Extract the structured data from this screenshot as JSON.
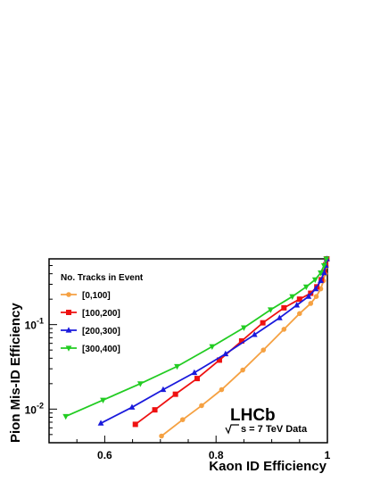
{
  "chart_data": {
    "type": "line",
    "xlabel": "Kaon ID Efficiency",
    "ylabel": "Pion Mis-ID Efficiency",
    "xlim": [
      0.5,
      1.0
    ],
    "ylim": [
      0.004,
      0.6
    ],
    "yscale": "log",
    "xticks": [
      0.6,
      0.8,
      1
    ],
    "yticks": [
      0.01,
      0.1
    ],
    "ytick_labels": [
      {
        "base": "10",
        "exp": "-2"
      },
      {
        "base": "10",
        "exp": "-1"
      }
    ],
    "legend_title": "No. Tracks in Event",
    "legend_position": "top-left",
    "annotation": {
      "main": "LHCb",
      "sub": "s = 7 TeV Data"
    },
    "series": [
      {
        "name": "[0,100]",
        "color": "#f5a142",
        "marker": "circle",
        "points": [
          [
            0.702,
            0.0048
          ],
          [
            0.74,
            0.0075
          ],
          [
            0.774,
            0.011
          ],
          [
            0.81,
            0.017
          ],
          [
            0.848,
            0.029
          ],
          [
            0.885,
            0.05
          ],
          [
            0.922,
            0.088
          ],
          [
            0.95,
            0.135
          ],
          [
            0.97,
            0.178
          ],
          [
            0.98,
            0.215
          ],
          [
            0.988,
            0.265
          ],
          [
            0.993,
            0.33
          ],
          [
            0.996,
            0.4
          ],
          [
            0.998,
            0.49
          ],
          [
            0.999,
            0.6
          ]
        ]
      },
      {
        "name": "[100,200]",
        "color": "#ee1111",
        "marker": "square",
        "points": [
          [
            0.655,
            0.0066
          ],
          [
            0.69,
            0.0098
          ],
          [
            0.727,
            0.015
          ],
          [
            0.766,
            0.023
          ],
          [
            0.806,
            0.038
          ],
          [
            0.846,
            0.064
          ],
          [
            0.884,
            0.105
          ],
          [
            0.922,
            0.158
          ],
          [
            0.95,
            0.2
          ],
          [
            0.97,
            0.235
          ],
          [
            0.981,
            0.28
          ],
          [
            0.989,
            0.34
          ],
          [
            0.994,
            0.42
          ],
          [
            0.997,
            0.51
          ],
          [
            0.999,
            0.6
          ]
        ]
      },
      {
        "name": "[200,300]",
        "color": "#1a1adc",
        "marker": "triangle-up",
        "points": [
          [
            0.593,
            0.0068
          ],
          [
            0.649,
            0.0105
          ],
          [
            0.705,
            0.017
          ],
          [
            0.761,
            0.027
          ],
          [
            0.817,
            0.045
          ],
          [
            0.869,
            0.076
          ],
          [
            0.914,
            0.12
          ],
          [
            0.945,
            0.17
          ],
          [
            0.966,
            0.215
          ],
          [
            0.979,
            0.265
          ],
          [
            0.988,
            0.33
          ],
          [
            0.994,
            0.41
          ],
          [
            0.997,
            0.5
          ],
          [
            0.999,
            0.6
          ]
        ]
      },
      {
        "name": "[300,400]",
        "color": "#22cc22",
        "marker": "triangle-down",
        "points": [
          [
            0.53,
            0.0082
          ],
          [
            0.597,
            0.0128
          ],
          [
            0.664,
            0.02
          ],
          [
            0.73,
            0.032
          ],
          [
            0.793,
            0.055
          ],
          [
            0.85,
            0.092
          ],
          [
            0.898,
            0.15
          ],
          [
            0.937,
            0.215
          ],
          [
            0.962,
            0.28
          ],
          [
            0.978,
            0.34
          ],
          [
            0.988,
            0.41
          ],
          [
            0.994,
            0.5
          ],
          [
            0.998,
            0.6
          ]
        ]
      }
    ]
  }
}
